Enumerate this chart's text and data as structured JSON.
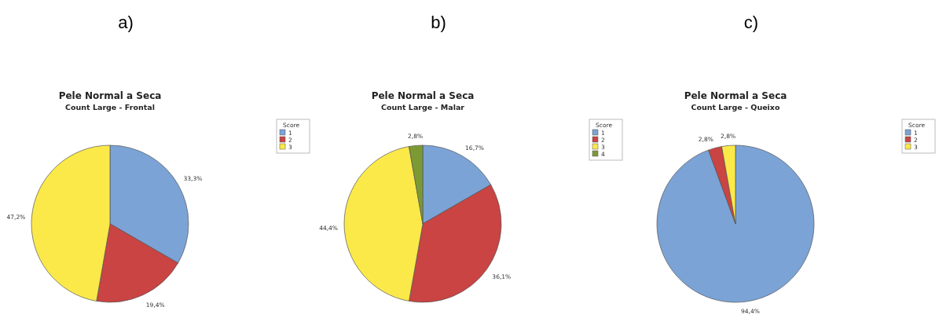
{
  "chart_data": [
    {
      "type": "pie",
      "annotations": [
        "a)"
      ],
      "title": "Pele Normal a Seca",
      "subtitle": "Count Large - Frontal",
      "legend_title": "Score",
      "legend": "top right",
      "categories": [
        "1",
        "2",
        "3"
      ],
      "values": [
        33.3,
        19.4,
        47.2
      ],
      "colors": [
        "#7ba3d6",
        "#c94442",
        "#fbe94a"
      ],
      "value_labels": [
        "33,3%",
        "19,4%",
        "47,2%"
      ]
    },
    {
      "type": "pie",
      "annotations": [
        "b)"
      ],
      "title": "Pele Normal a Seca",
      "subtitle": "Count Large - Malar",
      "legend_title": "Score",
      "legend": "top right",
      "categories": [
        "1",
        "2",
        "3",
        "4"
      ],
      "values": [
        16.7,
        36.1,
        44.4,
        2.8
      ],
      "colors": [
        "#7ba3d6",
        "#c94442",
        "#fbe94a",
        "#7c9a34"
      ],
      "value_labels": [
        "16,7%",
        "36,1%",
        "44,4%",
        "2,8%"
      ]
    },
    {
      "type": "pie",
      "annotations": [
        "c)"
      ],
      "title": "Pele Normal a Seca",
      "subtitle": "Count Large - Queixo",
      "legend_title": "Score",
      "legend": "top right",
      "categories": [
        "1",
        "2",
        "3"
      ],
      "values": [
        94.4,
        2.8,
        2.8
      ],
      "colors": [
        "#7ba3d6",
        "#c94442",
        "#fbe94a"
      ],
      "value_labels": [
        "94,4%",
        "2,8%",
        "2,8%"
      ]
    }
  ]
}
